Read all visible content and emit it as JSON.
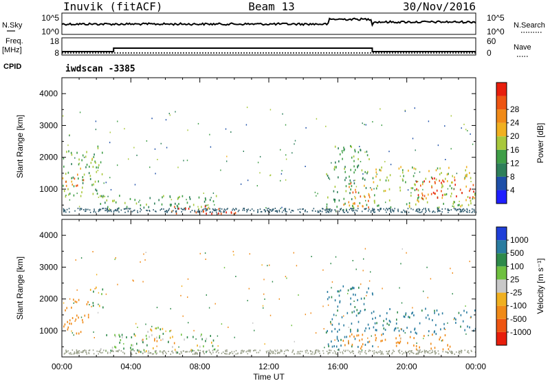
{
  "header": {
    "station": "Inuvik (fitACF)",
    "beam": "Beam 13",
    "date": "30/Nov/2016"
  },
  "strips": {
    "nsky_label": "N.Sky",
    "nsky_top": "10^5",
    "nsky_bottom": "10^0",
    "nsearch_label": "N.Search",
    "nsearch_top": "10^5",
    "nsearch_bottom": "10^0",
    "freq_label_1": "Freq.",
    "freq_label_2": "[MHz]",
    "freq_top": "18",
    "freq_bottom": "8",
    "nave_label": "Nave",
    "nave_top": "60",
    "nave_bottom": "0",
    "cpid_label": "CPID",
    "cpid_value": "iwdscan -3385"
  },
  "chart_data": [
    {
      "type": "heatmap",
      "title": "",
      "xlabel": "Time UT",
      "ylabel": "Slant Range [km]",
      "x_ticks": [
        "00:00",
        "04:00",
        "08:00",
        "12:00",
        "16:00",
        "20:00",
        "00:00"
      ],
      "xlim_hours": [
        0,
        24
      ],
      "ylim": [
        180,
        4500
      ],
      "y_ticks": [
        1000,
        2000,
        3000,
        4000
      ],
      "colorbar": {
        "label": "Power [dB]",
        "ticks": [
          "4",
          "8",
          "12",
          "16",
          "20",
          "24",
          "28"
        ],
        "colors": [
          "#1f1fff",
          "#1e4fa8",
          "#2e7f5a",
          "#3f9e47",
          "#a8c83c",
          "#f0b020",
          "#f08a18",
          "#ee5512",
          "#e81e0c"
        ]
      },
      "regions": [
        {
          "t0": 0.0,
          "t1": 2.4,
          "r0": 700,
          "r1": 2200,
          "value": 14
        },
        {
          "t0": 0.0,
          "t1": 1.5,
          "r0": 1100,
          "r1": 1500,
          "value": 24
        },
        {
          "t0": 1.5,
          "t1": 2.2,
          "r0": 1700,
          "r1": 2400,
          "value": 14
        },
        {
          "t0": 2.2,
          "t1": 9.0,
          "r0": 300,
          "r1": 800,
          "value": 12
        },
        {
          "t0": 6.0,
          "t1": 10.5,
          "r0": 220,
          "r1": 500,
          "value": 28
        },
        {
          "t0": 15.3,
          "t1": 17.8,
          "r0": 300,
          "r1": 2400,
          "value": 12
        },
        {
          "t0": 16.2,
          "t1": 18.0,
          "r0": 400,
          "r1": 1200,
          "value": 24
        },
        {
          "t0": 18.0,
          "t1": 24.0,
          "r0": 400,
          "r1": 1700,
          "value": 16
        },
        {
          "t0": 20.5,
          "t1": 24.0,
          "r0": 700,
          "r1": 1350,
          "value": 28
        }
      ]
    },
    {
      "type": "heatmap",
      "title": "",
      "xlabel": "Time UT",
      "ylabel": "Slant Range [km]",
      "x_ticks": [
        "00:00",
        "04:00",
        "08:00",
        "12:00",
        "16:00",
        "20:00",
        "00:00"
      ],
      "xlim_hours": [
        0,
        24
      ],
      "ylim": [
        180,
        4500
      ],
      "y_ticks": [
        1000,
        2000,
        3000,
        4000
      ],
      "colorbar": {
        "label": "Velocity [m s^-1]",
        "ticks": [
          "1000",
          "500",
          "100",
          "25",
          "-25",
          "-100",
          "-500",
          "-1000"
        ],
        "colors": [
          "#1f3fd8",
          "#2a7ca0",
          "#2e8a4a",
          "#6fc040",
          "#c8c8c8",
          "#f0b020",
          "#f08a18",
          "#ee5512",
          "#e81e0c"
        ]
      },
      "regions": [
        {
          "t0": 0.0,
          "t1": 1.6,
          "r0": 900,
          "r1": 2000,
          "value": -300
        },
        {
          "t0": 1.6,
          "t1": 2.4,
          "r0": 1700,
          "r1": 2400,
          "value": 60
        },
        {
          "t0": 2.2,
          "t1": 9.0,
          "r0": 300,
          "r1": 900,
          "value": 80
        },
        {
          "t0": 4.5,
          "t1": 6.5,
          "r0": 500,
          "r1": 1100,
          "value": 0
        },
        {
          "t0": 15.3,
          "t1": 18.0,
          "r0": 400,
          "r1": 2400,
          "value": 600
        },
        {
          "t0": 16.2,
          "t1": 22.5,
          "r0": 400,
          "r1": 900,
          "value": -300
        },
        {
          "t0": 18.0,
          "t1": 24.0,
          "r0": 900,
          "r1": 1700,
          "value": 600
        }
      ]
    }
  ]
}
